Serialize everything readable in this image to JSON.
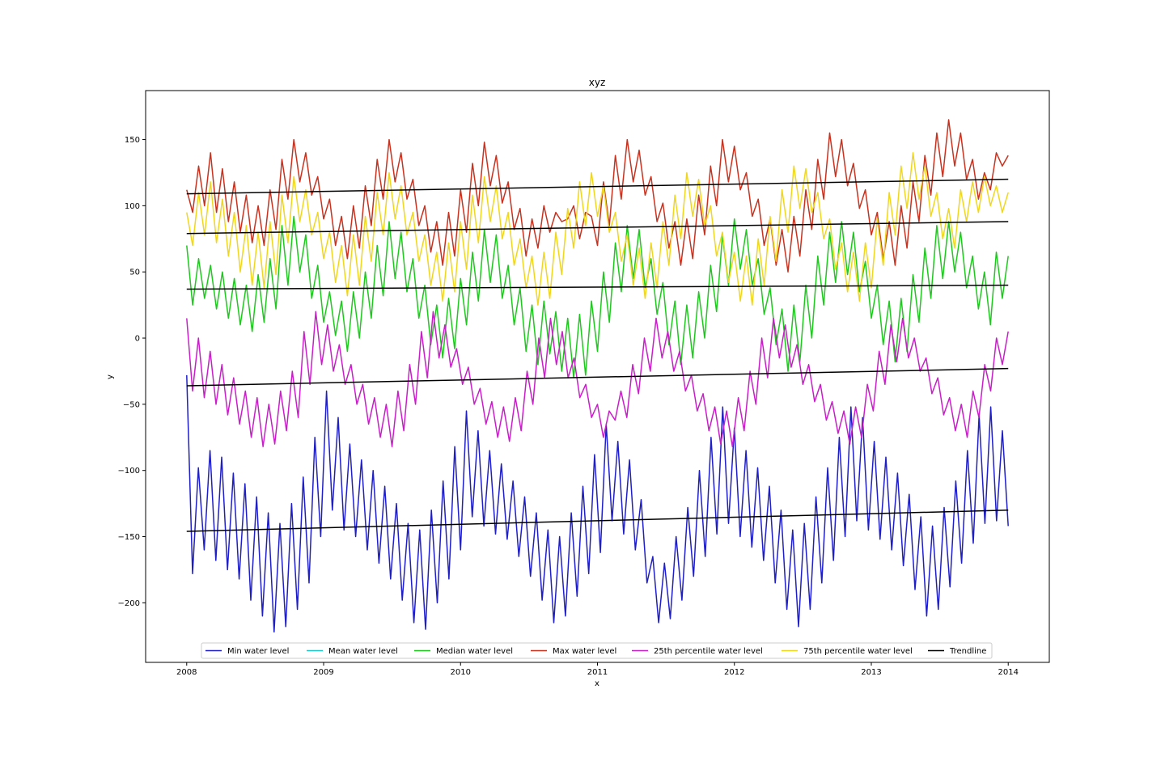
{
  "chart_data": {
    "type": "line",
    "title": "xyz",
    "xlabel": "x",
    "ylabel": "y",
    "xlim": [
      2007.7,
      2014.3
    ],
    "ylim": [
      -245,
      187
    ],
    "x_ticks": [
      2008,
      2009,
      2010,
      2011,
      2012,
      2013,
      2014
    ],
    "x_tick_labels": [
      "2008",
      "2009",
      "2010",
      "2011",
      "2012",
      "2013",
      "2014"
    ],
    "y_ticks": [
      -200,
      -150,
      -100,
      -50,
      0,
      50,
      100,
      150
    ],
    "y_tick_labels": [
      "−200",
      "−150",
      "−100",
      "−50",
      "0",
      "50",
      "100",
      "150"
    ],
    "grid": false,
    "legend_placement": "lower-center",
    "series": [
      {
        "name": "Min water level",
        "color": "#1f1fc8",
        "x_range": [
          2008.0,
          2014.0
        ],
        "values": [
          -28,
          -178,
          -98,
          -160,
          -85,
          -168,
          -90,
          -175,
          -102,
          -182,
          -110,
          -198,
          -120,
          -210,
          -132,
          -222,
          -140,
          -218,
          -125,
          -205,
          -105,
          -185,
          -75,
          -150,
          -40,
          -130,
          -60,
          -145,
          -80,
          -150,
          -92,
          -160,
          -100,
          -170,
          -112,
          -182,
          -125,
          -198,
          -140,
          -215,
          -145,
          -220,
          -130,
          -200,
          -108,
          -182,
          -82,
          -160,
          -55,
          -135,
          -70,
          -142,
          -85,
          -148,
          -95,
          -152,
          -108,
          -165,
          -120,
          -180,
          -132,
          -198,
          -145,
          -215,
          -150,
          -210,
          -132,
          -195,
          -112,
          -178,
          -88,
          -162,
          -65,
          -138,
          -78,
          -148,
          -92,
          -160,
          -122,
          -185,
          -165,
          -215,
          -170,
          -212,
          -150,
          -198,
          -128,
          -180,
          -100,
          -165,
          -75,
          -148,
          -52,
          -140,
          -68,
          -150,
          -85,
          -158,
          -98,
          -168,
          -112,
          -185,
          -130,
          -205,
          -145,
          -218,
          -140,
          -205,
          -120,
          -185,
          -98,
          -168,
          -75,
          -150,
          -52,
          -138,
          -60,
          -145,
          -78,
          -152,
          -90,
          -160,
          -102,
          -172,
          -118,
          -190,
          -135,
          -210,
          -142,
          -205,
          -128,
          -188,
          -108,
          -170,
          -85,
          -155,
          -58,
          -140,
          -52,
          -138,
          -70,
          -142
        ]
      },
      {
        "name": "Mean water level",
        "color": "#1fc8c8",
        "x_range": [
          2008.0,
          2014.0
        ],
        "values": []
      },
      {
        "name": "Median water level",
        "color": "#1fc81f",
        "x_range": [
          2008.0,
          2014.0
        ],
        "values": [
          70,
          25,
          60,
          30,
          55,
          22,
          50,
          15,
          45,
          10,
          40,
          5,
          48,
          12,
          60,
          22,
          85,
          40,
          92,
          50,
          78,
          30,
          55,
          12,
          35,
          2,
          28,
          -10,
          35,
          0,
          50,
          15,
          70,
          32,
          88,
          45,
          80,
          35,
          60,
          15,
          40,
          -5,
          25,
          -15,
          30,
          -8,
          45,
          10,
          65,
          28,
          82,
          42,
          78,
          30,
          55,
          10,
          38,
          -10,
          25,
          -20,
          28,
          -12,
          20,
          -25,
          15,
          -30,
          18,
          -28,
          28,
          -10,
          50,
          12,
          72,
          35,
          85,
          45,
          82,
          38,
          60,
          18,
          42,
          -5,
          28,
          -20,
          25,
          -15,
          35,
          0,
          55,
          20,
          78,
          40,
          90,
          52,
          82,
          40,
          60,
          18,
          38,
          -5,
          22,
          -25,
          25,
          -18,
          40,
          0,
          62,
          25,
          80,
          42,
          88,
          48,
          80,
          35,
          58,
          15,
          40,
          -5,
          28,
          -18,
          30,
          -10,
          48,
          12,
          68,
          30,
          85,
          45,
          88,
          50,
          80,
          38,
          62,
          22,
          50,
          10,
          65,
          30,
          62
        ]
      },
      {
        "name": "Max water level",
        "color": "#c8321f",
        "x_range": [
          2008.0,
          2014.0
        ],
        "values": [
          112,
          95,
          130,
          100,
          140,
          95,
          128,
          88,
          118,
          80,
          108,
          72,
          100,
          70,
          112,
          82,
          135,
          105,
          150,
          118,
          140,
          108,
          122,
          90,
          105,
          70,
          92,
          60,
          100,
          68,
          115,
          85,
          135,
          105,
          150,
          118,
          140,
          105,
          120,
          85,
          100,
          65,
          88,
          55,
          95,
          62,
          112,
          80,
          132,
          100,
          148,
          115,
          138,
          102,
          118,
          82,
          98,
          62,
          90,
          68,
          100,
          80,
          95,
          88,
          90,
          100,
          75,
          95,
          92,
          70,
          118,
          85,
          138,
          105,
          150,
          118,
          142,
          108,
          122,
          88,
          102,
          68,
          88,
          55,
          90,
          60,
          108,
          78,
          130,
          100,
          150,
          118,
          145,
          112,
          125,
          92,
          105,
          70,
          90,
          55,
          82,
          50,
          92,
          62,
          112,
          82,
          135,
          105,
          155,
          122,
          150,
          115,
          132,
          98,
          112,
          78,
          95,
          60,
          88,
          55,
          100,
          68,
          118,
          88,
          138,
          108,
          155,
          122,
          165,
          130,
          155,
          120,
          135,
          105,
          125,
          112,
          140,
          130,
          138
        ]
      },
      {
        "name": "25th percentile water level",
        "color": "#c81fc8",
        "x_range": [
          2008.0,
          2014.0
        ],
        "values": [
          15,
          -40,
          0,
          -45,
          -10,
          -50,
          -20,
          -58,
          -30,
          -65,
          -40,
          -75,
          -45,
          -82,
          -50,
          -80,
          -40,
          -70,
          -25,
          -60,
          5,
          -35,
          20,
          -20,
          10,
          -25,
          -5,
          -35,
          -20,
          -50,
          -35,
          -65,
          -45,
          -75,
          -50,
          -82,
          -40,
          -70,
          -20,
          -50,
          5,
          -30,
          20,
          -15,
          10,
          -22,
          -8,
          -35,
          -22,
          -50,
          -38,
          -65,
          -48,
          -75,
          -52,
          -78,
          -45,
          -70,
          -25,
          -50,
          0,
          -30,
          15,
          -20,
          5,
          -30,
          -15,
          -45,
          -35,
          -60,
          -50,
          -75,
          -55,
          -62,
          -40,
          -60,
          -20,
          -42,
          0,
          -25,
          15,
          -15,
          5,
          -25,
          -10,
          -40,
          -28,
          -55,
          -42,
          -70,
          -52,
          -80,
          -55,
          -82,
          -45,
          -70,
          -25,
          -50,
          0,
          -30,
          15,
          -15,
          10,
          -22,
          -5,
          -35,
          -20,
          -48,
          -35,
          -62,
          -48,
          -72,
          -55,
          -80,
          -52,
          -75,
          -35,
          -55,
          -10,
          -35,
          10,
          -18,
          15,
          -15,
          0,
          -25,
          -15,
          -42,
          -30,
          -58,
          -45,
          -70,
          -50,
          -75,
          -40,
          -60,
          -20,
          -40,
          0,
          -20,
          5
        ]
      },
      {
        "name": "75th percentile water level",
        "color": "#f0d71f",
        "x_range": [
          2008.0,
          2014.0
        ],
        "values": [
          95,
          70,
          110,
          78,
          118,
          72,
          105,
          62,
          95,
          50,
          85,
          40,
          80,
          38,
          88,
          48,
          108,
          72,
          122,
          88,
          112,
          78,
          95,
          60,
          80,
          42,
          70,
          32,
          78,
          40,
          92,
          58,
          110,
          78,
          125,
          90,
          115,
          78,
          95,
          58,
          78,
          40,
          65,
          28,
          72,
          35,
          88,
          52,
          108,
          72,
          122,
          88,
          115,
          75,
          95,
          55,
          75,
          38,
          62,
          25,
          65,
          30,
          80,
          48,
          98,
          68,
          118,
          85,
          125,
          92,
          115,
          80,
          95,
          58,
          78,
          40,
          68,
          30,
          72,
          38,
          88,
          55,
          108,
          75,
          125,
          92,
          120,
          85,
          100,
          62,
          80,
          42,
          65,
          28,
          62,
          25,
          75,
          40,
          92,
          58,
          112,
          80,
          130,
          98,
          128,
          95,
          110,
          75,
          90,
          52,
          72,
          35,
          65,
          28,
          72,
          38,
          90,
          55,
          110,
          78,
          130,
          98,
          140,
          105,
          130,
          92,
          110,
          75,
          98,
          68,
          112,
          88,
          118,
          95,
          122,
          100,
          115,
          95,
          110
        ]
      },
      {
        "name": "Trendline",
        "color": "#000000",
        "lines": [
          {
            "x": [
              2008.0,
              2014.0
            ],
            "y": [
              -146,
              -130
            ]
          },
          {
            "x": [
              2008.0,
              2014.0
            ],
            "y": [
              -36,
              -23
            ]
          },
          {
            "x": [
              2008.0,
              2014.0
            ],
            "y": [
              37,
              40
            ]
          },
          {
            "x": [
              2008.0,
              2014.0
            ],
            "y": [
              79,
              88
            ]
          },
          {
            "x": [
              2008.0,
              2014.0
            ],
            "y": [
              109,
              120
            ]
          }
        ]
      }
    ]
  }
}
